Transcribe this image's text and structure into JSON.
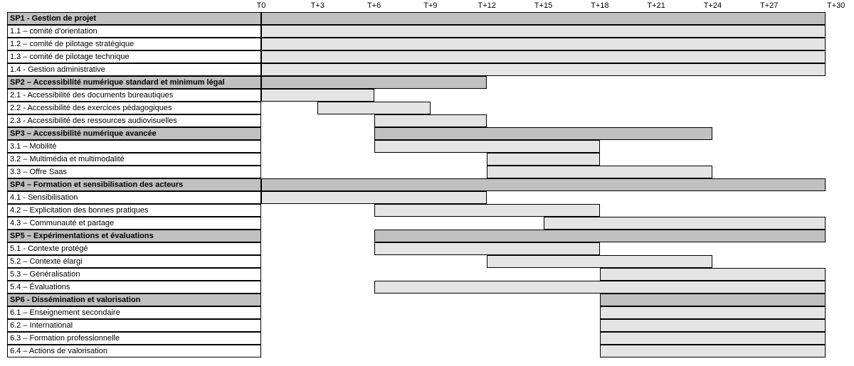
{
  "timeline": {
    "ticks": [
      "T0",
      "T+3",
      "T+6",
      "T+9",
      "T+12",
      "T+15",
      "T+18",
      "T+21",
      "T+24",
      "T+27",
      "T+30"
    ],
    "start": 0,
    "end": 30
  },
  "rows": [
    {
      "kind": "phase",
      "label": "SP1 - Gestion de projet",
      "start": 0,
      "end": 30
    },
    {
      "kind": "task",
      "label": "1.1 – comité d'orientation",
      "start": 0,
      "end": 30
    },
    {
      "kind": "task",
      "label": "1.2 – comité de pilotage stratégique",
      "start": 0,
      "end": 30
    },
    {
      "kind": "task",
      "label": "1.3 – comité de pilotage technique",
      "start": 0,
      "end": 30
    },
    {
      "kind": "task",
      "label": "1.4 - Gestion administrative",
      "start": 0,
      "end": 30
    },
    {
      "kind": "phase",
      "label": "SP2 – Accessibilité numérique standard et minimum légal",
      "start": 0,
      "end": 12
    },
    {
      "kind": "task",
      "label": "2.1 - Accessibilité des documents bureautiques",
      "start": 0,
      "end": 6
    },
    {
      "kind": "task",
      "label": "2.2 - Accessibilité  des exercices pédagogiques",
      "start": 3,
      "end": 9
    },
    {
      "kind": "task",
      "label": "2.3 -  Accessibilité des ressources audiovisuelles",
      "start": 6,
      "end": 12
    },
    {
      "kind": "phase",
      "label": "SP3 – Accessibilité numérique avancée",
      "start": 6,
      "end": 24
    },
    {
      "kind": "task",
      "label": "3.1 – Mobilité",
      "start": 6,
      "end": 18
    },
    {
      "kind": "task",
      "label": "3.2 – Multimédia et multimodalité",
      "start": 12,
      "end": 18
    },
    {
      "kind": "task",
      "label": "3.3 – Offre Saas",
      "start": 12,
      "end": 24
    },
    {
      "kind": "phase",
      "label": "SP4 – Formation et sensibilisation des acteurs",
      "start": 0,
      "end": 30
    },
    {
      "kind": "task",
      "label": "4.1 - Sensibilisation",
      "start": 0,
      "end": 12
    },
    {
      "kind": "task",
      "label": "4.2 – Explicitation des bonnes pratiques",
      "start": 6,
      "end": 18
    },
    {
      "kind": "task",
      "label": "4.3 – Communauté et partage",
      "start": 15,
      "end": 30
    },
    {
      "kind": "phase",
      "label": "SP5 – Expérimentations et évaluations",
      "start": 6,
      "end": 30
    },
    {
      "kind": "task",
      "label": "5.1 - Contexte protégé",
      "start": 6,
      "end": 18
    },
    {
      "kind": "task",
      "label": "5.2 –  Contexte élargi",
      "start": 12,
      "end": 24
    },
    {
      "kind": "task",
      "label": "5.3 – Généralisation",
      "start": 18,
      "end": 30
    },
    {
      "kind": "task",
      "label": "5.4 – Évaluations",
      "start": 6,
      "end": 30
    },
    {
      "kind": "phase",
      "label": "SP6 - Dissémination  et valorisation",
      "start": 18,
      "end": 30
    },
    {
      "kind": "task",
      "label": "6.1 – Enseignement secondaire",
      "start": 18,
      "end": 30
    },
    {
      "kind": "task",
      "label": "6.2 – International",
      "start": 18,
      "end": 30
    },
    {
      "kind": "task",
      "label": "6.3 – Formation professionnelle",
      "start": 18,
      "end": 30
    },
    {
      "kind": "task",
      "label": "6.4 – Actions de valorisation",
      "start": 18,
      "end": 30
    }
  ]
}
